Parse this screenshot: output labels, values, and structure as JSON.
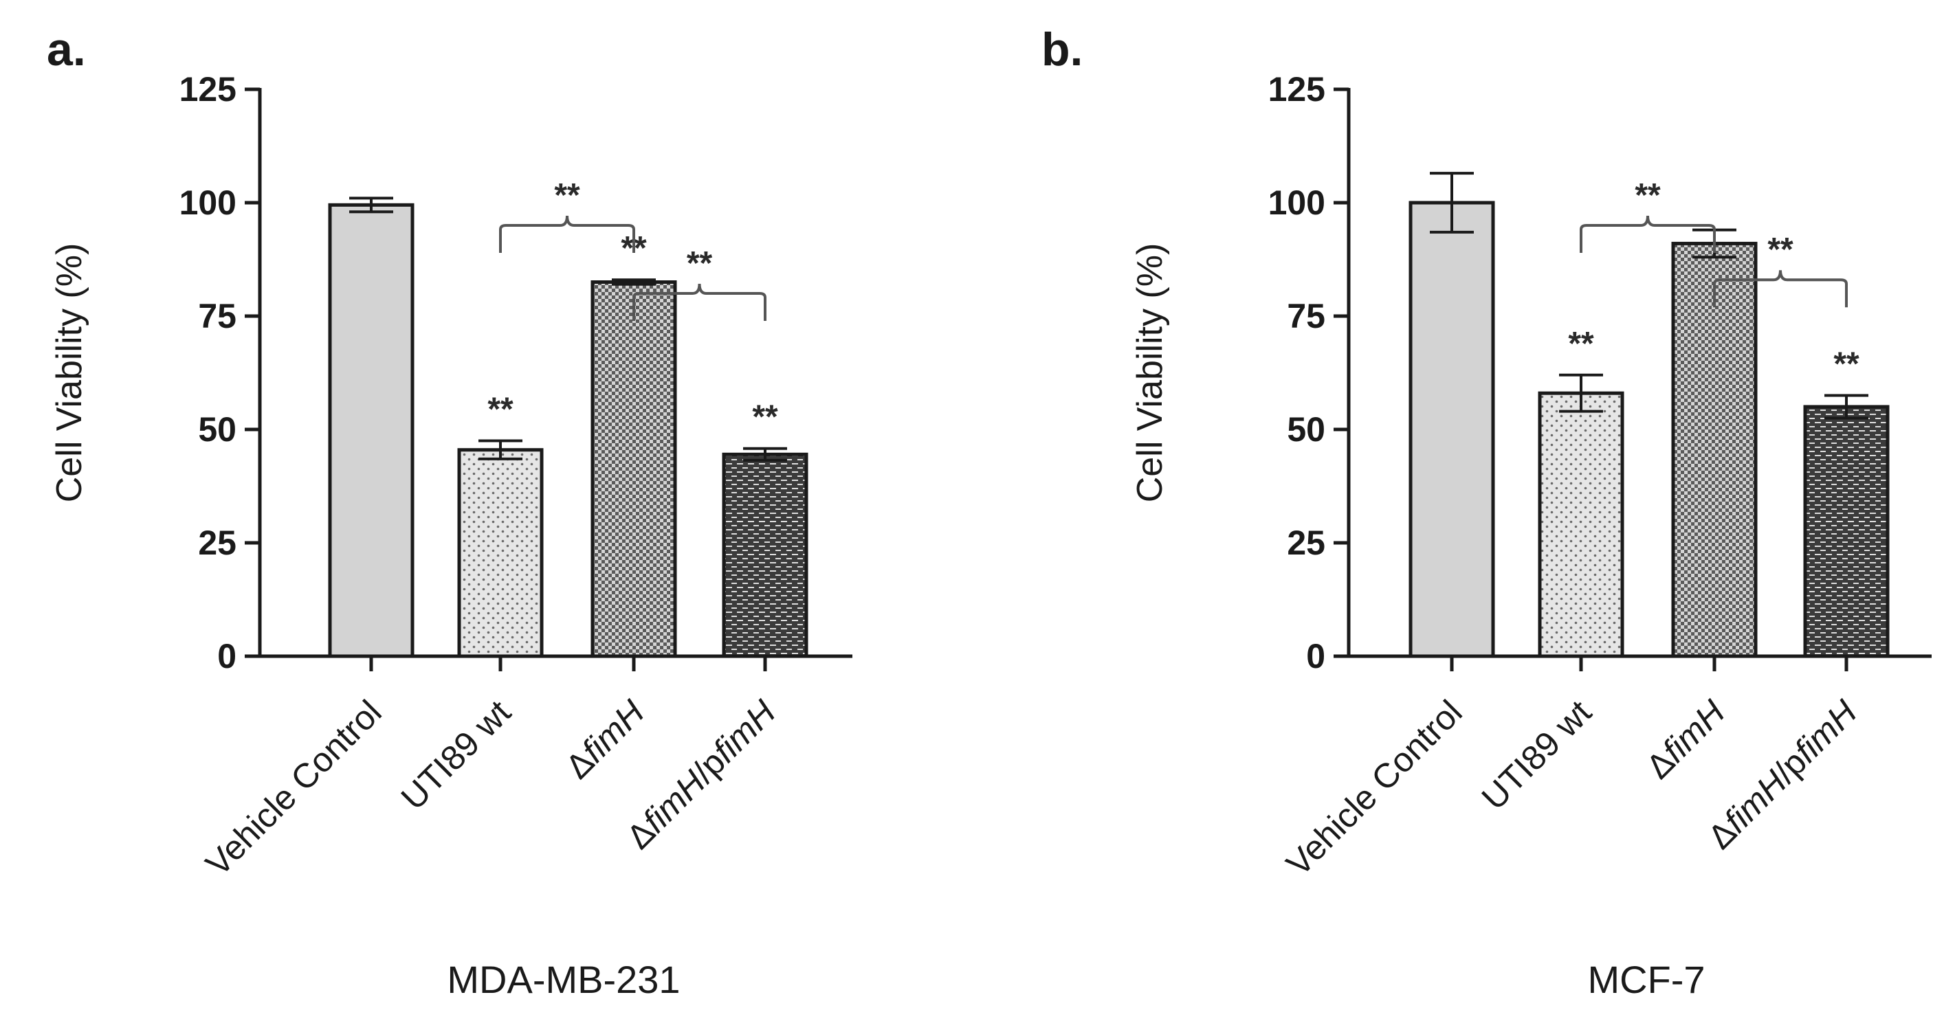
{
  "figure": {
    "background": "#ffffff",
    "ink": "#1a1a1a"
  },
  "chart_data": [
    {
      "panel": "a.",
      "type": "bar",
      "xlabel": "MDA-MB-231",
      "ylabel": "Cell Viability (%)",
      "ylim": [
        0,
        125
      ],
      "yticks": [
        0,
        25,
        50,
        75,
        100,
        125
      ],
      "categories": [
        {
          "pre": "",
          "ital": "",
          "rest": "Vehicle Control"
        },
        {
          "pre": "UTI89  wt",
          "ital": "",
          "rest": ""
        },
        {
          "pre": "Δ",
          "ital": "fimH",
          "rest": ""
        },
        {
          "pre": "Δ",
          "ital": "fimH",
          "rest": "/p",
          "ital2": "fimH"
        }
      ],
      "values": [
        99.5,
        45.5,
        82.5,
        44.5
      ],
      "errors": [
        1.5,
        2.0,
        0.5,
        1.3
      ],
      "patterns": [
        "solid",
        "dots",
        "checker",
        "bricks"
      ],
      "bar_stars": [
        "",
        "**",
        "**",
        "**"
      ],
      "brackets": [
        {
          "from": 1,
          "to": 2,
          "label": "**",
          "level": 95
        },
        {
          "from": 2,
          "to": 3,
          "label": "**",
          "level": 80
        }
      ]
    },
    {
      "panel": "b.",
      "type": "bar",
      "xlabel": "MCF-7",
      "ylabel": "Cell Viability (%)",
      "ylim": [
        0,
        125
      ],
      "yticks": [
        0,
        25,
        50,
        75,
        100,
        125
      ],
      "categories": [
        {
          "pre": "",
          "ital": "",
          "rest": "Vehicle Control"
        },
        {
          "pre": "UTI89  wt",
          "ital": "",
          "rest": ""
        },
        {
          "pre": "Δ",
          "ital": "fimH",
          "rest": ""
        },
        {
          "pre": "Δ",
          "ital": "fimH",
          "rest": "/p",
          "ital2": "fimH"
        }
      ],
      "values": [
        100,
        58,
        91,
        55
      ],
      "errors": [
        6.5,
        4.0,
        3.0,
        2.5
      ],
      "patterns": [
        "solid",
        "dots",
        "checker",
        "bricks"
      ],
      "bar_stars": [
        "",
        "**",
        "",
        "**"
      ],
      "brackets": [
        {
          "from": 1,
          "to": 2,
          "label": "**",
          "level": 95
        },
        {
          "from": 2,
          "to": 3,
          "label": "**",
          "level": 83
        }
      ]
    }
  ]
}
